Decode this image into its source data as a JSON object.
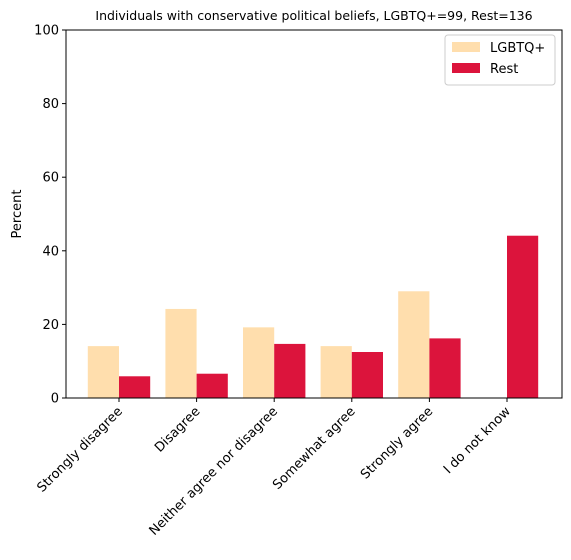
{
  "chart_data": {
    "type": "bar",
    "title": "Individuals with conservative political beliefs, LGBTQ+=99, Rest=136",
    "xlabel": "",
    "ylabel": "Percent",
    "ylim": [
      0,
      100
    ],
    "yticks": [
      0,
      20,
      40,
      60,
      80,
      100
    ],
    "categories": [
      "Strongly disagree",
      "Disagree",
      "Neither agree nor disagree",
      "Somewhat agree",
      "Strongly agree",
      "I do not know"
    ],
    "series": [
      {
        "name": "LGBTQ+",
        "color": "#ffdead",
        "values": [
          14.1,
          24.2,
          19.2,
          14.1,
          29.0,
          0
        ]
      },
      {
        "name": "Rest",
        "color": "#dc143c",
        "values": [
          5.9,
          6.6,
          14.7,
          12.5,
          16.2,
          44.1
        ]
      }
    ],
    "legend_position": "top-right",
    "grid": false
  }
}
